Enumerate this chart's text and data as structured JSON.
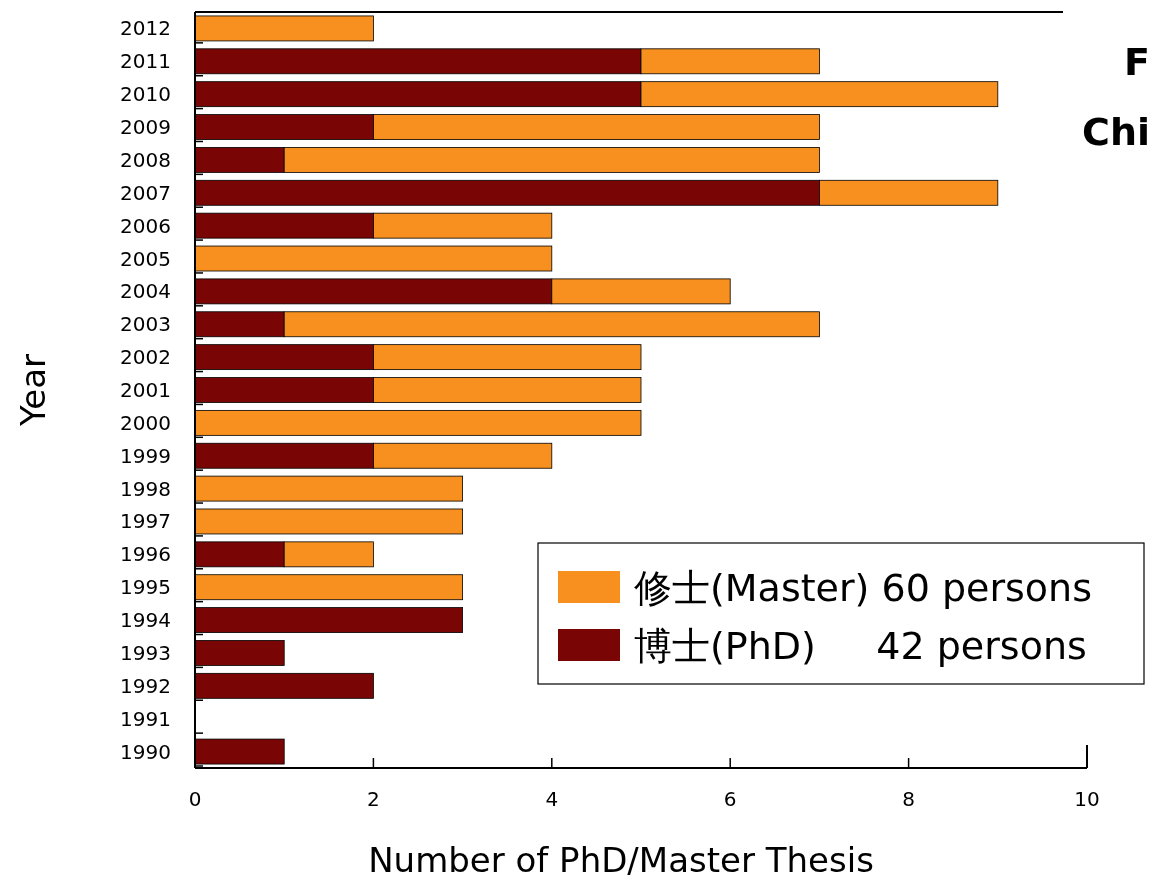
{
  "chart_data": {
    "type": "bar",
    "orientation": "horizontal",
    "stacked": true,
    "xlabel": "Number of PhD/Master Thesis",
    "ylabel": "Year",
    "categories": [
      "2012",
      "2011",
      "2010",
      "2009",
      "2008",
      "2007",
      "2006",
      "2005",
      "2004",
      "2003",
      "2002",
      "2001",
      "2000",
      "1999",
      "1998",
      "1997",
      "1996",
      "1995",
      "1994",
      "1993",
      "1992",
      "1991",
      "1990"
    ],
    "series": [
      {
        "name": "博士(PhD)     42 persons",
        "color": "#7a0505",
        "values": [
          0,
          5,
          5,
          2,
          1,
          7,
          2,
          0,
          4,
          1,
          2,
          2,
          0,
          2,
          0,
          0,
          1,
          0,
          3,
          1,
          2,
          0,
          1
        ]
      },
      {
        "name": "修士(Master) 60 persons",
        "color": "#f7901e",
        "values": [
          2,
          2,
          4,
          5,
          6,
          2,
          2,
          4,
          2,
          6,
          3,
          3,
          5,
          2,
          3,
          3,
          1,
          3,
          0,
          0,
          0,
          0,
          0
        ]
      }
    ],
    "xlim": [
      0,
      10
    ],
    "xticks": [
      0,
      2,
      4,
      6,
      8,
      10
    ],
    "legend": "bottom right",
    "annotations": [
      "F",
      "Chi"
    ]
  }
}
